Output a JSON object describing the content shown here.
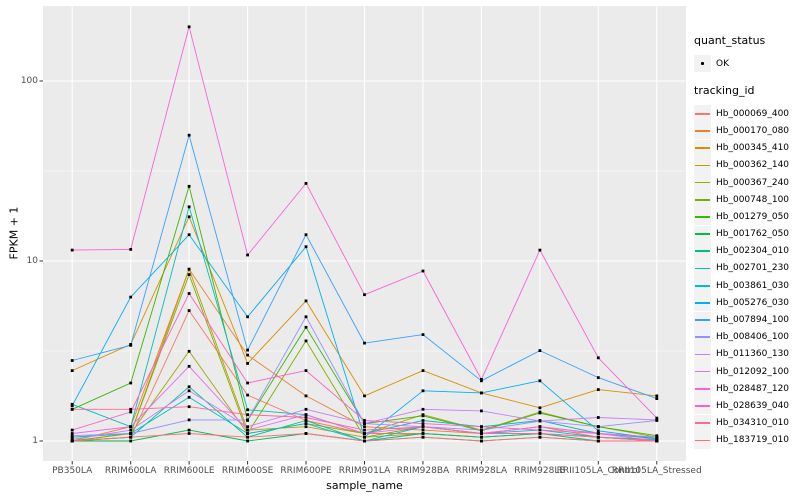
{
  "chart_data": {
    "type": "line",
    "title": "",
    "xlabel": "sample_name",
    "ylabel": "FPKM + 1",
    "y_scale": "log10",
    "y_ticks": [
      1,
      10,
      100
    ],
    "y_tick_labels": [
      "1",
      "10",
      "100"
    ],
    "y_minor_ticks": [
      3.1623,
      31.623
    ],
    "ylim": [
      0.78,
      260
    ],
    "grid": true,
    "panel_bg": "#EBEBEB",
    "grid_color": "#FFFFFF",
    "point_color": "#000000",
    "point_shape": "filled-square",
    "legend_position": "right",
    "x_categories": [
      "PB350LA",
      "RRIM600LA",
      "RRIM600LE",
      "RRIM600SE",
      "RRIM600PE",
      "RRIM901LA",
      "RRIM928BA",
      "RRIM928LA",
      "RRIM928LB",
      "RRII105LA_Control",
      "RRII105LA_Stressed"
    ],
    "legend_quant": {
      "title": "quant_status",
      "entries": [
        {
          "label": "OK"
        }
      ]
    },
    "legend_tracking": {
      "title": "tracking_id"
    },
    "series": [
      {
        "name": "Hb_000069_400",
        "color": "#F8766D",
        "values": [
          1.0,
          1.05,
          5.3,
          1.8,
          1.3,
          1.1,
          1.1,
          1.05,
          1.1,
          1.05,
          1.0
        ]
      },
      {
        "name": "Hb_000170_080",
        "color": "#EA8331",
        "values": [
          1.0,
          1.2,
          9.0,
          3.0,
          1.78,
          1.2,
          1.15,
          1.1,
          1.2,
          1.05,
          1.0
        ]
      },
      {
        "name": "Hb_000345_410",
        "color": "#D89000",
        "values": [
          2.46,
          3.44,
          17.6,
          2.7,
          6.0,
          1.78,
          2.46,
          1.85,
          1.53,
          1.93,
          1.78
        ]
      },
      {
        "name": "Hb_000362_140",
        "color": "#C09B00",
        "values": [
          1.0,
          1.1,
          9.0,
          1.15,
          1.2,
          1.05,
          1.1,
          1.05,
          1.1,
          1.05,
          1.0
        ]
      },
      {
        "name": "Hb_000367_240",
        "color": "#A3A500",
        "values": [
          1.05,
          1.1,
          3.15,
          1.1,
          1.25,
          1.1,
          1.4,
          1.15,
          1.45,
          1.2,
          1.05
        ]
      },
      {
        "name": "Hb_000748_100",
        "color": "#7CAE00",
        "values": [
          1.0,
          1.1,
          8.4,
          1.1,
          3.6,
          1.05,
          1.2,
          1.1,
          1.2,
          1.1,
          1.05
        ]
      },
      {
        "name": "Hb_001279_050",
        "color": "#39B600",
        "values": [
          1.5,
          2.1,
          26.0,
          1.3,
          4.28,
          1.25,
          1.38,
          1.14,
          1.43,
          1.2,
          1.07
        ]
      },
      {
        "name": "Hb_001762_050",
        "color": "#00BB4E",
        "values": [
          1.0,
          1.0,
          1.15,
          1.0,
          1.1,
          1.0,
          1.05,
          1.0,
          1.05,
          1.0,
          1.0
        ]
      },
      {
        "name": "Hb_002304_010",
        "color": "#00C087",
        "values": [
          1.0,
          1.05,
          2.0,
          1.05,
          1.3,
          1.0,
          1.1,
          1.05,
          1.1,
          1.0,
          1.0
        ]
      },
      {
        "name": "Hb_002701_230",
        "color": "#00C0B8",
        "values": [
          1.6,
          1.2,
          20.0,
          1.49,
          1.4,
          1.1,
          1.3,
          1.2,
          1.3,
          1.1,
          1.03
        ]
      },
      {
        "name": "Hb_003861_030",
        "color": "#00BCD8",
        "values": [
          1.05,
          1.1,
          1.75,
          1.1,
          1.25,
          1.0,
          1.2,
          1.1,
          1.15,
          1.05,
          1.02
        ]
      },
      {
        "name": "Hb_005276_030",
        "color": "#00B0F6",
        "values": [
          1.57,
          6.3,
          14.0,
          4.9,
          12.0,
          1.05,
          1.9,
          1.85,
          2.16,
          1.14,
          1.03
        ]
      },
      {
        "name": "Hb_007894_100",
        "color": "#35A2FF",
        "values": [
          2.8,
          3.4,
          50.0,
          3.2,
          14.0,
          3.5,
          3.9,
          2.16,
          3.18,
          2.25,
          1.72
        ]
      },
      {
        "name": "Hb_008406_100",
        "color": "#9590FF",
        "values": [
          1.07,
          1.1,
          1.31,
          1.31,
          4.9,
          1.25,
          1.2,
          1.15,
          1.29,
          1.2,
          1.3
        ]
      },
      {
        "name": "Hb_011360_130",
        "color": "#C77CFF",
        "values": [
          1.02,
          1.15,
          1.9,
          1.2,
          1.5,
          1.25,
          1.5,
          1.47,
          1.29,
          1.35,
          1.31
        ]
      },
      {
        "name": "Hb_012092_100",
        "color": "#E76BF3",
        "values": [
          1.1,
          1.2,
          2.6,
          1.15,
          1.4,
          1.1,
          1.2,
          1.1,
          1.2,
          1.1,
          1.05
        ]
      },
      {
        "name": "Hb_028487_120",
        "color": "#FA62DB",
        "values": [
          11.5,
          11.6,
          200.0,
          10.8,
          27.0,
          6.5,
          8.8,
          2.2,
          11.5,
          2.9,
          1.34
        ]
      },
      {
        "name": "Hb_028639_040",
        "color": "#FF61C9",
        "values": [
          1.15,
          1.45,
          6.6,
          2.1,
          2.46,
          1.3,
          1.25,
          1.2,
          1.15,
          1.1,
          1.0
        ]
      },
      {
        "name": "Hb_034310_010",
        "color": "#FF689E",
        "values": [
          1.5,
          1.5,
          1.55,
          1.4,
          1.35,
          1.15,
          1.2,
          1.1,
          1.1,
          1.05,
          1.0
        ]
      },
      {
        "name": "Hb_183719_010",
        "color": "#FC7178",
        "values": [
          1.0,
          1.05,
          1.1,
          1.05,
          1.1,
          1.0,
          1.05,
          1.0,
          1.05,
          1.0,
          1.0
        ]
      }
    ]
  }
}
